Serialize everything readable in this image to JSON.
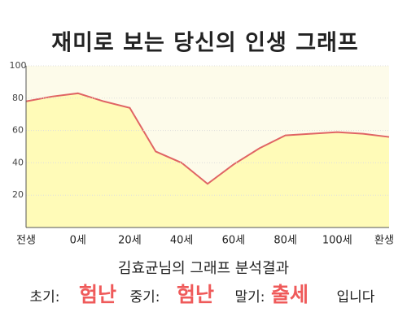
{
  "chart_data": {
    "type": "area-line",
    "title": "재미로 보는 당신의 인생 그래프",
    "categories": [
      "전생",
      null,
      "0세",
      null,
      "20세",
      null,
      "40세",
      null,
      "60세",
      null,
      "80세",
      null,
      "100세",
      null,
      "환생"
    ],
    "values": [
      78,
      81,
      83,
      78,
      74,
      47,
      40,
      27,
      39,
      49,
      57,
      58,
      59,
      58,
      56
    ],
    "color": "#e06464",
    "fill": "#fffbb8",
    "ylim": [
      0,
      100
    ],
    "yticks": [
      20,
      40,
      60,
      80,
      100
    ],
    "grid": true
  },
  "footer": {
    "title": "김효균님의 그래프 분석결과",
    "items": [
      {
        "label": "초기:",
        "value": "험난"
      },
      {
        "label": "중기:",
        "value": "험난"
      },
      {
        "label": "말기:",
        "value": "출세"
      }
    ],
    "suffix": "입니다"
  }
}
